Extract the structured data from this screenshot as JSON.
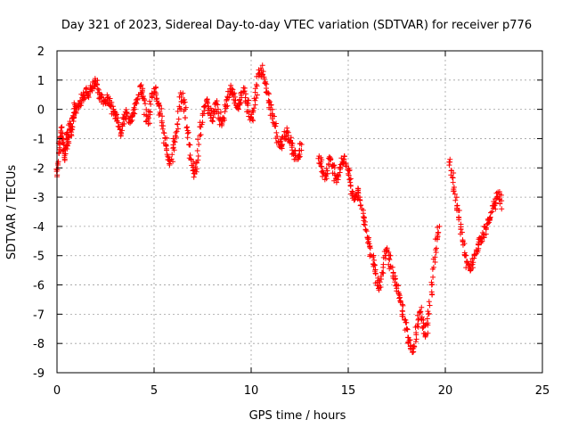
{
  "chart_data": {
    "type": "scatter",
    "title": "Day 321 of 2023, Sidereal Day-to-day VTEC variation (SDTVAR) for receiver p776",
    "xlabel": "GPS time / hours",
    "ylabel": "SDTVAR / TECUs",
    "xlim": [
      0,
      25
    ],
    "ylim": [
      -9,
      2
    ],
    "xticks": [
      0,
      5,
      10,
      15,
      20,
      25
    ],
    "yticks": [
      -9,
      -8,
      -7,
      -6,
      -5,
      -4,
      -3,
      -2,
      -1,
      0,
      1,
      2
    ],
    "grid": true,
    "legend": "none",
    "series": [
      {
        "name": "SDTVAR",
        "color": "#ff0000",
        "marker": "plus",
        "segments": [
          {
            "x": [
              0.0,
              0.05,
              0.1,
              0.15,
              0.2,
              0.25,
              0.3,
              0.35,
              0.4,
              0.45,
              0.5,
              0.55,
              0.6,
              0.65,
              0.7,
              0.75,
              0.8,
              0.85,
              0.9,
              0.95,
              1.0,
              1.1,
              1.2,
              1.3,
              1.4,
              1.5,
              1.6,
              1.7,
              1.8,
              1.9,
              2.0,
              2.1,
              2.2,
              2.3,
              2.4,
              2.5,
              2.6,
              2.7,
              2.8,
              2.9,
              3.0,
              3.1,
              3.2,
              3.3,
              3.4,
              3.5,
              3.6,
              3.7,
              3.8,
              3.9,
              4.0,
              4.1,
              4.2,
              4.3,
              4.4,
              4.5,
              4.6,
              4.7,
              4.8,
              4.9,
              5.0,
              5.1,
              5.2,
              5.3,
              5.4,
              5.5,
              5.6,
              5.7,
              5.8,
              5.9,
              6.0,
              6.1,
              6.2,
              6.3,
              6.4,
              6.5,
              6.6,
              6.7,
              6.8,
              6.9,
              7.0,
              7.1,
              7.2,
              7.3,
              7.4,
              7.5,
              7.6,
              7.7,
              7.8,
              7.9,
              8.0,
              8.1,
              8.2,
              8.3,
              8.4,
              8.5,
              8.6,
              8.7,
              8.8,
              8.9,
              9.0,
              9.1,
              9.2,
              9.3,
              9.4,
              9.5,
              9.6,
              9.7,
              9.8,
              9.9,
              10.0,
              10.1,
              10.2,
              10.3,
              10.4,
              10.5,
              10.6,
              10.7,
              10.8,
              10.9,
              11.0,
              11.1,
              11.2,
              11.3,
              11.4,
              11.5,
              11.6,
              11.7,
              11.8,
              11.9,
              12.0,
              12.1,
              12.2,
              12.3,
              12.4,
              12.5,
              12.6
            ],
            "y": [
              -2.3,
              -1.9,
              -1.5,
              -1.2,
              -0.8,
              -0.6,
              -1.0,
              -1.4,
              -1.7,
              -1.3,
              -1.0,
              -0.8,
              -1.1,
              -0.7,
              -0.5,
              -0.9,
              -0.6,
              -0.3,
              -0.1,
              0.1,
              0.0,
              0.2,
              0.3,
              0.4,
              0.5,
              0.6,
              0.5,
              0.6,
              0.7,
              0.8,
              0.9,
              0.7,
              0.5,
              0.4,
              0.3,
              0.2,
              0.4,
              0.3,
              0.1,
              -0.1,
              -0.2,
              -0.4,
              -0.6,
              -0.8,
              -0.5,
              -0.3,
              -0.1,
              -0.3,
              -0.4,
              -0.2,
              0.0,
              0.2,
              0.5,
              0.8,
              0.6,
              0.3,
              -0.2,
              -0.5,
              -0.1,
              0.4,
              0.7,
              0.5,
              0.2,
              -0.1,
              -0.4,
              -0.8,
              -1.2,
              -1.6,
              -1.9,
              -1.7,
              -1.3,
              -0.9,
              -0.5,
              0.1,
              0.5,
              0.3,
              0.0,
              -0.6,
              -1.2,
              -1.7,
              -2.1,
              -2.2,
              -1.8,
              -1.2,
              -0.6,
              -0.2,
              0.1,
              0.3,
              0.1,
              -0.2,
              -0.4,
              -0.1,
              0.2,
              0.0,
              -0.3,
              -0.5,
              -0.3,
              0.1,
              0.4,
              0.6,
              0.7,
              0.5,
              0.3,
              0.1,
              0.2,
              0.4,
              0.6,
              0.4,
              0.2,
              -0.1,
              -0.3,
              -0.1,
              0.3,
              0.8,
              1.2,
              1.4,
              1.2,
              0.9,
              0.6,
              0.3,
              0.0,
              -0.2,
              -0.5,
              -0.8,
              -1.1,
              -1.3,
              -1.2,
              -1.0,
              -0.8,
              -0.9,
              -1.1,
              -1.3,
              -1.5,
              -1.7,
              -1.6,
              -1.4,
              -1.2
            ]
          },
          {
            "x": [
              13.5,
              13.6,
              13.7,
              13.8,
              13.9,
              14.0,
              14.1,
              14.2,
              14.3,
              14.4,
              14.5,
              14.6,
              14.7,
              14.8,
              14.9,
              15.0,
              15.1,
              15.2,
              15.3,
              15.4,
              15.5,
              15.6,
              15.7,
              15.8,
              15.9,
              16.0,
              16.1,
              16.2,
              16.3,
              16.4,
              16.5,
              16.6,
              16.7,
              16.8,
              16.9,
              17.0,
              17.1,
              17.2,
              17.3,
              17.4,
              17.5,
              17.6,
              17.7,
              17.8,
              17.9,
              18.0,
              18.1,
              18.2,
              18.3,
              18.4,
              18.5,
              18.6,
              18.7,
              18.8,
              18.9,
              19.0,
              19.1,
              19.2,
              19.3,
              19.4,
              19.5,
              19.6,
              19.7
            ],
            "y": [
              -1.6,
              -1.8,
              -2.1,
              -2.4,
              -2.2,
              -1.9,
              -1.7,
              -1.9,
              -2.2,
              -2.5,
              -2.3,
              -2.0,
              -1.8,
              -1.6,
              -1.9,
              -2.2,
              -2.5,
              -2.8,
              -3.1,
              -3.0,
              -2.7,
              -3.0,
              -3.4,
              -3.8,
              -4.1,
              -4.4,
              -4.7,
              -5.0,
              -5.3,
              -5.6,
              -5.9,
              -6.1,
              -5.8,
              -5.4,
              -5.0,
              -4.8,
              -5.1,
              -5.4,
              -5.7,
              -5.9,
              -6.0,
              -6.3,
              -6.6,
              -6.9,
              -7.2,
              -7.5,
              -7.8,
              -8.1,
              -8.3,
              -8.1,
              -7.7,
              -7.2,
              -6.9,
              -7.1,
              -7.4,
              -7.7,
              -7.3,
              -6.7,
              -6.0,
              -5.4,
              -4.8,
              -4.3,
              -4.0
            ]
          },
          {
            "x": [
              20.2,
              20.3,
              20.4,
              20.5,
              20.6,
              20.7,
              20.8,
              20.9,
              21.0,
              21.1,
              21.2,
              21.3,
              21.4,
              21.5,
              21.6,
              21.7,
              21.8,
              21.9,
              22.0,
              22.1,
              22.2,
              22.3,
              22.4,
              22.5,
              22.6,
              22.7,
              22.8,
              22.9
            ],
            "y": [
              -1.8,
              -2.1,
              -2.5,
              -2.9,
              -3.3,
              -3.7,
              -4.1,
              -4.5,
              -4.9,
              -5.2,
              -5.4,
              -5.5,
              -5.3,
              -5.0,
              -4.8,
              -4.6,
              -4.4,
              -4.5,
              -4.3,
              -4.1,
              -3.9,
              -3.7,
              -3.5,
              -3.3,
              -3.2,
              -3.0,
              -2.9,
              -3.4
            ]
          }
        ]
      }
    ]
  }
}
